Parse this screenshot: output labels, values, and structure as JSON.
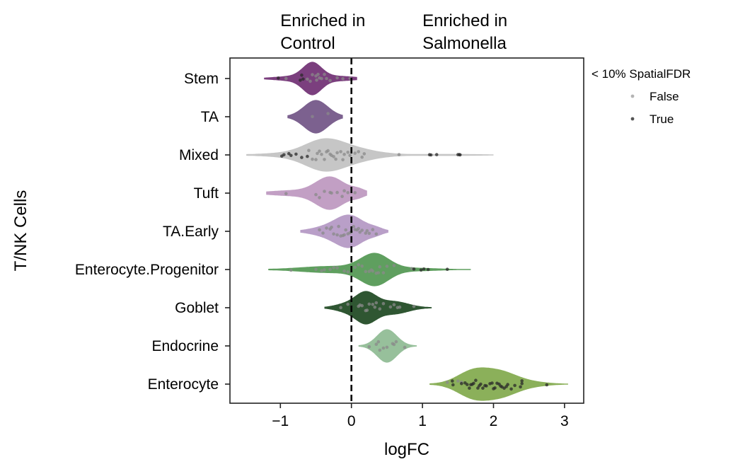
{
  "chart_data": {
    "type": "violin",
    "xlabel": "logFC",
    "ylabel": "T/NK Cells",
    "xlim": [
      -1.71,
      3.27
    ],
    "xticks": [
      -1,
      0,
      1,
      2,
      3
    ],
    "xtick_labels": [
      "−1",
      "0",
      "1",
      "2",
      "3"
    ],
    "reference_line": 0,
    "annotations": [
      {
        "lines": [
          "Enriched in",
          "Control"
        ],
        "at_x": -1
      },
      {
        "lines": [
          "Enriched in",
          "Salmonella"
        ],
        "at_x": 1
      }
    ],
    "legend": {
      "title": "< 10% SpatialFDR",
      "placement": "outside-top-right",
      "entries": [
        {
          "label": "False",
          "color": "#b4b4b4"
        },
        {
          "label": "True",
          "color": "#555555"
        }
      ]
    },
    "categories": [
      {
        "name": "Stem",
        "color": "#7b3f7e",
        "range": [
          -1.23,
          0.08
        ],
        "kde": [
          [
            -0.55,
            0.13,
            1
          ],
          [
            -0.8,
            0.25,
            0.15
          ],
          [
            -0.2,
            0.25,
            0.15
          ]
        ],
        "points_false": [
          -0.92,
          -0.62,
          -0.55,
          -0.5,
          -0.45,
          -0.42,
          -0.38,
          -0.3,
          -0.12,
          -0.02,
          -0.2,
          -0.58,
          -0.49,
          -0.47,
          -0.35
        ],
        "points_true": [
          -1.03,
          -0.72,
          -0.7,
          -0.68
        ]
      },
      {
        "name": "TA",
        "color": "#7c618f",
        "range": [
          -0.9,
          -0.12
        ],
        "kde": [
          [
            -0.5,
            0.17,
            1
          ]
        ],
        "points_false": [
          -0.55,
          -0.33
        ],
        "points_true": []
      },
      {
        "name": "Mixed",
        "color": "#c6c6c6",
        "range": [
          -1.48,
          2.0
        ],
        "kde": [
          [
            -0.38,
            0.28,
            1
          ],
          [
            0.1,
            0.3,
            0.3
          ],
          [
            1.3,
            0.4,
            0.04
          ],
          [
            -1.0,
            0.3,
            0.08
          ]
        ],
        "points_false": [
          -0.6,
          -0.55,
          -0.5,
          -0.45,
          -0.42,
          -0.38,
          -0.35,
          -0.3,
          -0.28,
          -0.25,
          -0.2,
          -0.15,
          -0.12,
          -0.1,
          -0.05,
          -0.02,
          0.05,
          0.1,
          0.15,
          0.18,
          -0.48,
          -0.33,
          -0.22,
          0.67
        ],
        "points_true": [
          -0.98,
          -0.95,
          -0.88,
          -0.85,
          -0.78,
          -0.7,
          -0.62,
          1.2,
          1.1,
          1.12,
          1.5,
          1.52,
          1.53
        ]
      },
      {
        "name": "Tuft",
        "color": "#c29fc4",
        "range": [
          -1.2,
          0.22
        ],
        "kde": [
          [
            -0.3,
            0.2,
            1
          ],
          [
            -0.85,
            0.3,
            0.15
          ],
          [
            0.1,
            0.1,
            0.2
          ]
        ],
        "points_false": [
          -0.92,
          -0.5,
          -0.45,
          -0.38,
          -0.3,
          -0.28,
          -0.2,
          -0.13,
          -0.05,
          0.05,
          -0.1
        ],
        "points_true": []
      },
      {
        "name": "TA.Early",
        "color": "#b99fc8",
        "range": [
          -0.72,
          0.52
        ],
        "kde": [
          [
            -0.03,
            0.2,
            1
          ],
          [
            -0.4,
            0.2,
            0.2
          ],
          [
            0.35,
            0.1,
            0.15
          ]
        ],
        "points_false": [
          -0.45,
          -0.4,
          -0.35,
          -0.3,
          -0.25,
          -0.2,
          -0.15,
          -0.12,
          -0.1,
          -0.05,
          -0.02,
          0.0,
          0.03,
          0.05,
          0.08,
          0.1,
          0.15,
          0.2,
          0.25,
          0.3,
          0.35,
          -0.18,
          -0.08,
          0.12,
          0.22,
          -0.28
        ],
        "points_true": []
      },
      {
        "name": "Enterocyte.Progenitor",
        "color": "#5f9f5f",
        "range": [
          -1.17,
          1.68
        ],
        "kde": [
          [
            0.33,
            0.2,
            1
          ],
          [
            -0.3,
            0.4,
            0.2
          ],
          [
            0.9,
            0.3,
            0.08
          ]
        ],
        "points_false": [
          -0.85,
          -0.5,
          -0.42,
          -0.38,
          -0.3,
          -0.2,
          -0.1,
          -0.05,
          0.05,
          0.1,
          0.15,
          0.2,
          0.25,
          0.3,
          0.35,
          0.4,
          0.45,
          0.5,
          0.6,
          0.85,
          -0.25,
          0.28,
          0.38
        ],
        "points_true": [
          0.98,
          1.02,
          1.08,
          1.35,
          0.88
        ]
      },
      {
        "name": "Goblet",
        "color": "#2f5632",
        "range": [
          -0.38,
          1.13
        ],
        "kde": [
          [
            0.2,
            0.15,
            1
          ],
          [
            0.6,
            0.2,
            0.4
          ],
          [
            -0.1,
            0.15,
            0.2
          ]
        ],
        "points_false": [
          -0.15,
          -0.05,
          0.1,
          0.12,
          0.15,
          0.2,
          0.25,
          0.3,
          0.35,
          0.4,
          0.45,
          0.55,
          0.6,
          0.65,
          0.68,
          0.88,
          0.22,
          0.33
        ],
        "points_true": []
      },
      {
        "name": "Endocrine",
        "color": "#97c09b",
        "range": [
          0.1,
          0.92
        ],
        "kde": [
          [
            0.5,
            0.14,
            1
          ]
        ],
        "points_false": [
          0.25,
          0.35,
          0.4,
          0.45,
          0.5,
          0.58,
          0.6,
          0.63,
          0.75,
          0.38
        ],
        "points_true": []
      },
      {
        "name": "Enterocyte",
        "color": "#8bb05a",
        "range": [
          1.1,
          3.05
        ],
        "kde": [
          [
            1.7,
            0.22,
            1
          ],
          [
            2.1,
            0.25,
            1
          ],
          [
            2.6,
            0.2,
            0.1
          ]
        ],
        "points_false": [
          1.35,
          1.5,
          1.55
        ],
        "points_true": [
          1.42,
          1.43,
          1.55,
          1.6,
          1.63,
          1.66,
          1.7,
          1.72,
          1.75,
          1.78,
          1.8,
          1.82,
          1.85,
          1.9,
          1.95,
          2.0,
          2.02,
          2.05,
          2.08,
          2.1,
          2.12,
          2.15,
          2.2,
          2.25,
          2.3,
          2.38,
          2.4,
          2.4,
          2.75,
          1.68,
          1.88,
          1.98,
          2.18
        ]
      }
    ]
  }
}
